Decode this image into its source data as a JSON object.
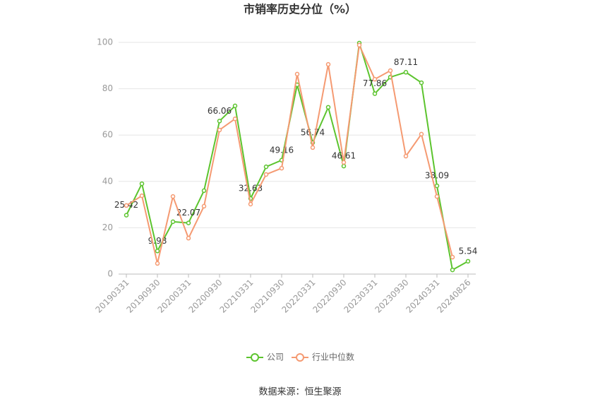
{
  "chart_data": {
    "type": "line",
    "title": "市销率历史分位（%）",
    "categories": [
      "20190331",
      null,
      "20190930",
      null,
      "20200331",
      null,
      "20200930",
      null,
      "20210331",
      null,
      "20210930",
      null,
      "20220331",
      null,
      "20220930",
      null,
      "20230331",
      null,
      "20230930",
      null,
      "20240331",
      null,
      "20240826"
    ],
    "series": [
      {
        "name": "公司",
        "color": "#5cc42e",
        "values": [
          25.42,
          39,
          9.98,
          22.6,
          22.07,
          36,
          66.06,
          72.6,
          32.63,
          46.3,
          49.16,
          81.7,
          56.74,
          72,
          46.61,
          99.7,
          77.86,
          85,
          87.11,
          82.6,
          38.09,
          1.8,
          5.54
        ],
        "value_labels": [
          "25.42",
          null,
          "9.98",
          null,
          "22.07",
          null,
          "66.06",
          null,
          "32.63",
          null,
          "49.16",
          null,
          "56.74",
          null,
          "46.61",
          null,
          "77.86",
          null,
          "87.11",
          null,
          "38.09",
          null,
          "5.54"
        ]
      },
      {
        "name": "行业中位数",
        "color": "#f59a72",
        "values": [
          29.6,
          33.8,
          4.6,
          33.5,
          15.5,
          29.3,
          62.2,
          67,
          30.2,
          43,
          45.7,
          86.3,
          54.6,
          90.5,
          48.2,
          98.8,
          84.1,
          87.8,
          50.9,
          60.4,
          33.5,
          7.3,
          null
        ]
      }
    ],
    "ylim": [
      0,
      100
    ],
    "yticks": [
      0,
      20,
      40,
      60,
      80,
      100
    ],
    "grid": true,
    "legend": "bottom",
    "source": "数据来源：恒生聚源"
  }
}
